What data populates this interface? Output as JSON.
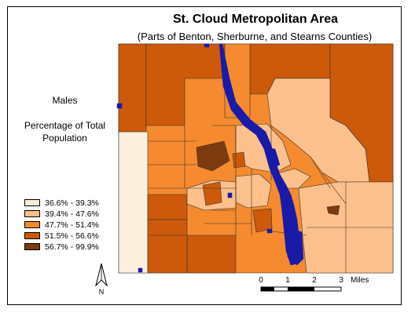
{
  "title": "St. Cloud Metropolitan Area",
  "subtitle": "(Parts of Benton, Sherburne, and Stearns Counties)",
  "legend": {
    "heading": "Males",
    "subheading": "Percentage of Total Population",
    "classes": [
      {
        "label": "36.6% - 39.3%",
        "color": "#fcefdc"
      },
      {
        "label": "39.4% - 47.6%",
        "color": "#fcc08c"
      },
      {
        "label": "47.7% - 51.4%",
        "color": "#f58a2e"
      },
      {
        "label": "51.5% - 56.6%",
        "color": "#cc5a0a"
      },
      {
        "label": "56.7% - 99.9%",
        "color": "#7d3a0e"
      }
    ]
  },
  "scale_bar": {
    "ticks": [
      "0",
      "1",
      "2",
      "3"
    ],
    "unit": "Miles"
  },
  "north_arrow": {
    "label": "N"
  },
  "colors": {
    "water": "#1a1aa8",
    "boundary": "#333333"
  }
}
